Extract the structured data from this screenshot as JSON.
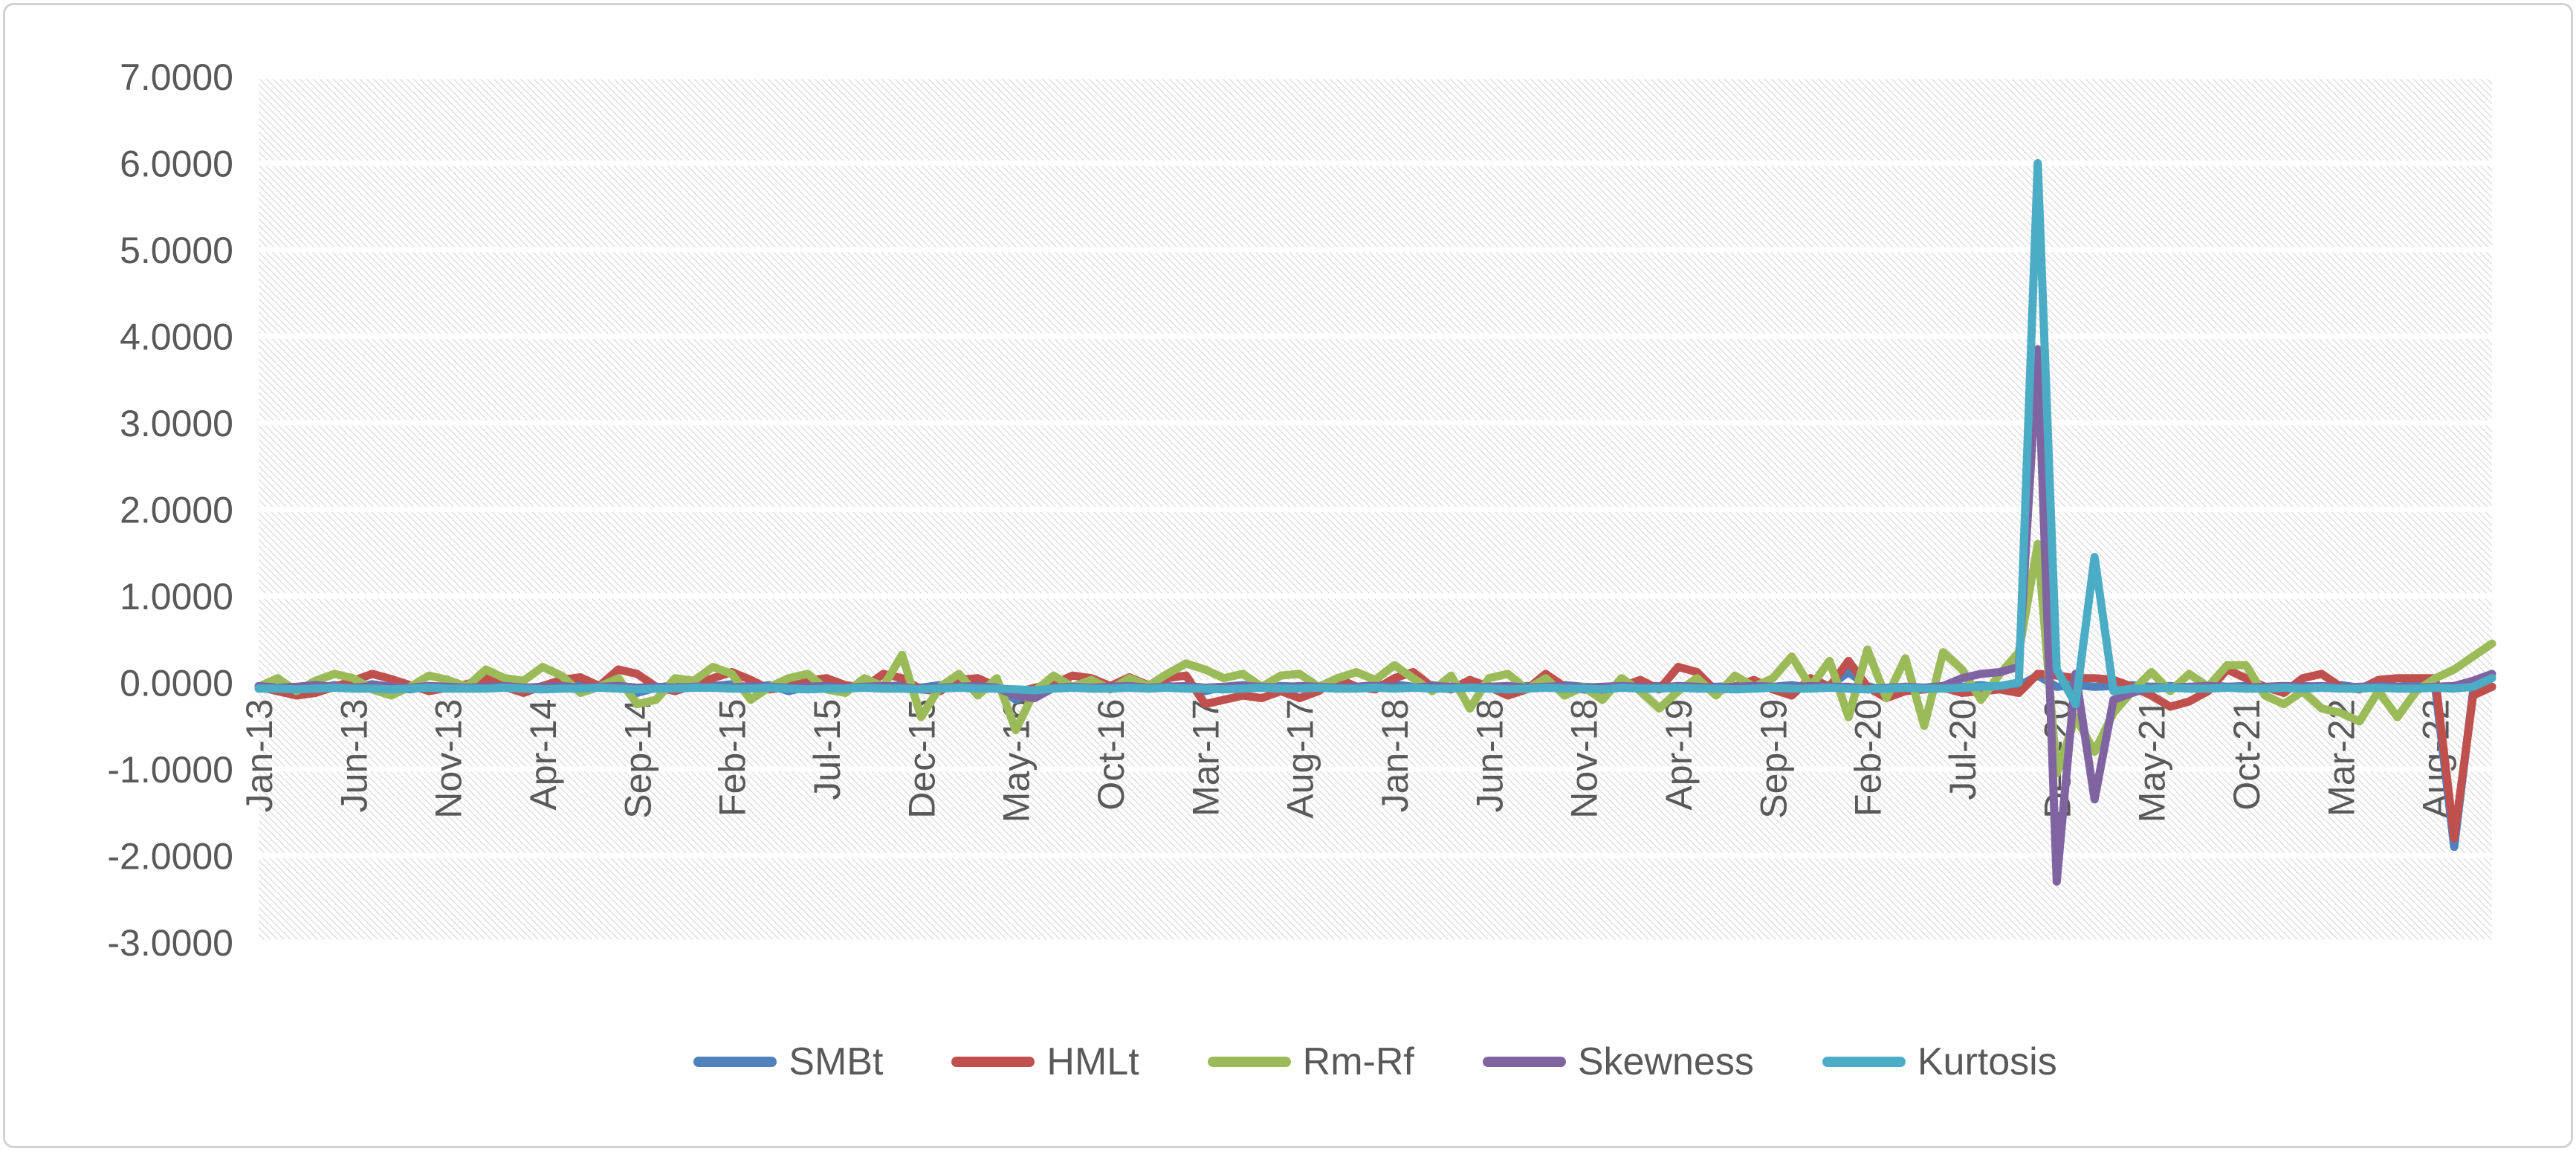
{
  "chart": {
    "frame_border_color": "#d2d2d2",
    "background_color": "#ffffff",
    "text_color": "#595959",
    "hatch_line_color": "#dcdcdc",
    "gridline_color": "#ffffff"
  },
  "chart_data": {
    "type": "line",
    "title": "",
    "xlabel": "",
    "ylabel": "",
    "grid": true,
    "plot_background": "diagonal-hatch",
    "legend_position": "bottom-center",
    "y_axis": {
      "min": -3,
      "max": 7,
      "step": 1,
      "tick_labels": [
        "7.0000",
        "6.0000",
        "5.0000",
        "4.0000",
        "3.0000",
        "2.0000",
        "1.0000",
        "0.0000",
        "-1.0000",
        "-2.0000",
        "-3.0000"
      ]
    },
    "x_axis": {
      "n_points": 119,
      "tick_interval": 5,
      "tick_labels": [
        "Jan-13",
        "Jun-13",
        "Nov-13",
        "Apr-14",
        "Sep-14",
        "Feb-15",
        "Jul-15",
        "Dec-15",
        "May-16",
        "Oct-16",
        "Mar-17",
        "Aug-17",
        "Jan-18",
        "Jun-18",
        "Nov-18",
        "Apr-19",
        "Sep-19",
        "Feb-20",
        "Jul-20",
        "Dec-20",
        "May-21",
        "Oct-21",
        "Mar-22",
        "Aug-22"
      ]
    },
    "series": [
      {
        "name": "SMBt",
        "color": "#4F81BD",
        "values": [
          -0.05,
          -0.08,
          -0.15,
          -0.08,
          -0.03,
          -0.06,
          -0.02,
          -0.05,
          -0.08,
          -0.04,
          -0.06,
          -0.03,
          -0.02,
          -0.05,
          -0.1,
          -0.04,
          -0.06,
          -0.03,
          -0.05,
          -0.02,
          -0.12,
          -0.06,
          -0.03,
          -0.05,
          -0.04,
          -0.02,
          -0.06,
          -0.03,
          -0.1,
          -0.05,
          -0.02,
          -0.06,
          -0.04,
          -0.05,
          -0.03,
          -0.06,
          -0.03,
          -0.05,
          -0.08,
          -0.04,
          -0.2,
          -0.1,
          -0.04,
          -0.06,
          -0.03,
          -0.05,
          -0.04,
          -0.06,
          -0.04,
          -0.06,
          -0.1,
          -0.05,
          -0.03,
          -0.06,
          -0.04,
          -0.05,
          -0.06,
          -0.04,
          -0.05,
          -0.03,
          -0.02,
          -0.05,
          -0.03,
          -0.06,
          -0.04,
          -0.05,
          -0.08,
          -0.04,
          -0.06,
          -0.03,
          -0.05,
          -0.06,
          -0.03,
          -0.05,
          -0.04,
          -0.06,
          -0.03,
          -0.05,
          -0.04,
          -0.06,
          -0.05,
          -0.03,
          -0.06,
          -0.04,
          0.12,
          -0.04,
          -0.1,
          -0.05,
          -0.06,
          -0.04,
          -0.05,
          -0.03,
          -0.06,
          -0.04,
          0.08,
          -0.05,
          -0.03,
          -0.05,
          -0.04,
          -0.03,
          -0.05,
          -0.04,
          -0.06,
          -0.03,
          -0.05,
          -0.04,
          -0.06,
          -0.05,
          -0.04,
          -0.05,
          -0.03,
          -0.06,
          -0.04,
          -0.05,
          -0.03,
          -0.05,
          -1.9,
          -0.1,
          -0.05
        ]
      },
      {
        "name": "HMLt",
        "color": "#C0504D",
        "values": [
          -0.05,
          -0.1,
          -0.15,
          -0.12,
          -0.05,
          0.02,
          0.1,
          0.04,
          -0.03,
          -0.1,
          -0.06,
          -0.02,
          0.05,
          -0.05,
          -0.12,
          -0.04,
          0.03,
          0.06,
          -0.04,
          0.15,
          0.1,
          -0.05,
          -0.1,
          -0.03,
          0.05,
          0.12,
          0.03,
          -0.08,
          -0.05,
          0.02,
          0.05,
          -0.03,
          -0.06,
          0.1,
          0.05,
          -0.08,
          -0.1,
          0.03,
          0.05,
          -0.05,
          -0.12,
          -0.06,
          -0.02,
          0.08,
          0.05,
          -0.04,
          0.06,
          -0.03,
          0.05,
          0.08,
          -0.25,
          -0.2,
          -0.15,
          -0.18,
          -0.1,
          -0.18,
          -0.1,
          0.05,
          -0.05,
          -0.08,
          0.05,
          0.12,
          -0.05,
          -0.08,
          0.03,
          -0.05,
          -0.15,
          -0.08,
          0.1,
          -0.05,
          -0.08,
          -0.1,
          -0.05,
          0.03,
          -0.08,
          0.18,
          0.12,
          -0.1,
          -0.05,
          0.03,
          -0.08,
          -0.15,
          0.05,
          -0.05,
          0.25,
          -0.05,
          -0.18,
          -0.1,
          -0.08,
          -0.06,
          -0.12,
          -0.1,
          -0.08,
          -0.12,
          0.1,
          0.08,
          0.05,
          0.05,
          0.03,
          -0.05,
          -0.15,
          -0.28,
          -0.22,
          -0.1,
          0.15,
          0.05,
          -0.05,
          -0.12,
          0.05,
          0.1,
          -0.05,
          -0.08,
          0.03,
          0.05,
          0.05,
          0.05,
          -1.8,
          -0.15,
          -0.05
        ]
      },
      {
        "name": "Rm-Rf",
        "color": "#9BBB59",
        "values": [
          -0.05,
          0.05,
          -0.1,
          0.02,
          0.1,
          0.05,
          -0.08,
          -0.15,
          -0.05,
          0.08,
          0.03,
          -0.05,
          0.15,
          0.05,
          0.02,
          0.18,
          0.08,
          -0.12,
          -0.05,
          0.05,
          -0.25,
          -0.2,
          0.05,
          0.02,
          0.18,
          0.1,
          -0.2,
          -0.05,
          0.05,
          0.1,
          -0.08,
          -0.12,
          0.05,
          -0.05,
          0.32,
          -0.4,
          -0.05,
          0.1,
          -0.15,
          0.05,
          -0.55,
          -0.1,
          0.08,
          -0.05,
          0.03,
          -0.08,
          0.05,
          -0.04,
          0.1,
          0.22,
          0.15,
          0.05,
          0.1,
          -0.05,
          0.08,
          0.1,
          -0.05,
          0.05,
          0.12,
          0.03,
          0.2,
          0.05,
          -0.1,
          0.08,
          -0.3,
          0.05,
          0.1,
          -0.08,
          0.05,
          -0.15,
          -0.05,
          -0.2,
          0.05,
          -0.1,
          -0.3,
          -0.1,
          0.05,
          -0.15,
          0.08,
          -0.05,
          0.05,
          0.3,
          -0.05,
          0.25,
          -0.4,
          0.38,
          -0.18,
          0.28,
          -0.5,
          0.35,
          0.15,
          -0.2,
          0.1,
          0.35,
          1.6,
          -1.05,
          -0.4,
          -0.8,
          -0.35,
          -0.1,
          0.12,
          -0.1,
          0.1,
          -0.05,
          0.2,
          0.2,
          -0.15,
          -0.25,
          -0.1,
          -0.3,
          -0.35,
          -0.45,
          -0.1,
          -0.4,
          -0.1,
          0.05,
          0.15,
          0.3,
          0.45
        ]
      },
      {
        "name": "Skewness",
        "color": "#8064A2",
        "values": [
          -0.04,
          -0.06,
          -0.05,
          -0.03,
          -0.05,
          -0.06,
          -0.04,
          -0.05,
          -0.06,
          -0.04,
          -0.05,
          -0.06,
          -0.05,
          -0.04,
          -0.06,
          -0.05,
          -0.04,
          -0.06,
          -0.05,
          -0.04,
          -0.06,
          -0.05,
          -0.06,
          -0.05,
          -0.05,
          -0.06,
          -0.04,
          -0.05,
          -0.06,
          -0.05,
          -0.04,
          -0.06,
          -0.05,
          -0.04,
          -0.05,
          -0.08,
          -0.06,
          -0.05,
          -0.04,
          -0.06,
          -0.15,
          -0.18,
          -0.06,
          -0.05,
          -0.06,
          -0.05,
          -0.04,
          -0.06,
          -0.05,
          -0.04,
          -0.06,
          -0.05,
          -0.04,
          -0.05,
          -0.06,
          -0.04,
          -0.05,
          -0.06,
          -0.05,
          -0.04,
          -0.05,
          -0.06,
          -0.04,
          -0.05,
          -0.06,
          -0.05,
          -0.04,
          -0.06,
          -0.05,
          -0.04,
          -0.06,
          -0.05,
          -0.04,
          -0.05,
          -0.06,
          -0.04,
          -0.05,
          -0.06,
          -0.05,
          -0.04,
          -0.05,
          -0.06,
          -0.04,
          -0.05,
          -0.05,
          -0.08,
          -0.06,
          -0.05,
          -0.06,
          -0.04,
          0.05,
          0.1,
          0.12,
          0.18,
          3.85,
          -2.3,
          0.1,
          -1.35,
          -0.2,
          -0.12,
          -0.05,
          -0.06,
          -0.05,
          -0.04,
          -0.05,
          -0.06,
          -0.05,
          -0.04,
          -0.05,
          -0.04,
          -0.06,
          -0.05,
          -0.04,
          -0.05,
          -0.06,
          -0.05,
          -0.04,
          0.02,
          0.1
        ]
      },
      {
        "name": "Kurtosis",
        "color": "#4BACC6",
        "values": [
          -0.07,
          -0.07,
          -0.08,
          -0.07,
          -0.06,
          -0.07,
          -0.07,
          -0.08,
          -0.07,
          -0.06,
          -0.07,
          -0.07,
          -0.07,
          -0.06,
          -0.07,
          -0.08,
          -0.07,
          -0.07,
          -0.06,
          -0.07,
          -0.08,
          -0.07,
          -0.07,
          -0.06,
          -0.06,
          -0.07,
          -0.07,
          -0.06,
          -0.07,
          -0.08,
          -0.07,
          -0.07,
          -0.06,
          -0.07,
          -0.07,
          -0.08,
          -0.07,
          -0.06,
          -0.07,
          -0.07,
          -0.08,
          -0.09,
          -0.07,
          -0.06,
          -0.07,
          -0.07,
          -0.06,
          -0.07,
          -0.06,
          -0.07,
          -0.07,
          -0.08,
          -0.07,
          -0.06,
          -0.07,
          -0.07,
          -0.06,
          -0.07,
          -0.07,
          -0.06,
          -0.07,
          -0.06,
          -0.07,
          -0.07,
          -0.06,
          -0.07,
          -0.08,
          -0.07,
          -0.06,
          -0.07,
          -0.07,
          -0.08,
          -0.06,
          -0.07,
          -0.07,
          -0.06,
          -0.07,
          -0.07,
          -0.08,
          -0.07,
          -0.06,
          -0.07,
          -0.07,
          -0.06,
          -0.07,
          -0.08,
          -0.07,
          -0.06,
          -0.07,
          -0.07,
          -0.06,
          -0.05,
          -0.04,
          0.0,
          6.0,
          0.15,
          -0.25,
          1.45,
          -0.1,
          -0.07,
          -0.07,
          -0.06,
          -0.07,
          -0.07,
          -0.06,
          -0.07,
          -0.07,
          -0.06,
          -0.07,
          -0.06,
          -0.07,
          -0.07,
          -0.06,
          -0.07,
          -0.07,
          -0.06,
          -0.07,
          -0.05,
          0.05
        ]
      }
    ]
  }
}
